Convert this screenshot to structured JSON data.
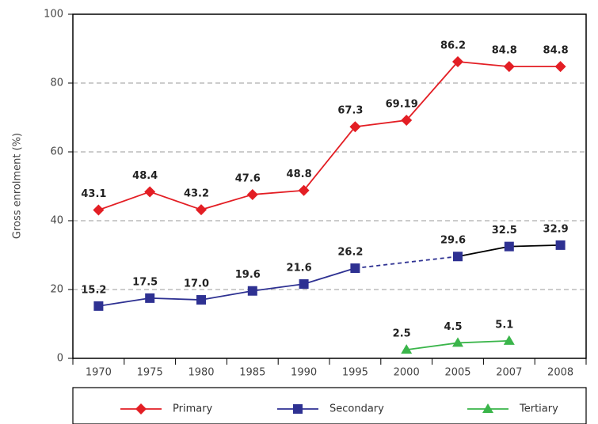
{
  "chart_data": {
    "type": "line",
    "y_label": "Gross enrolment (%)",
    "categories": [
      "1970",
      "1975",
      "1980",
      "1985",
      "1990",
      "1995",
      "2000",
      "2005",
      "2007",
      "2008"
    ],
    "ylim": [
      0,
      100
    ],
    "yticks": [
      0,
      20,
      40,
      60,
      80,
      100
    ],
    "grid": true,
    "series": [
      {
        "name": "Primary",
        "color": "#e31e24",
        "marker": "diamond",
        "values": [
          43.1,
          48.4,
          43.2,
          47.6,
          48.8,
          67.3,
          69.19,
          86.2,
          84.8,
          84.8
        ]
      },
      {
        "name": "Secondary",
        "color": "#2e3192",
        "marker": "square",
        "bridge_gaps": true,
        "line_colors": [
          "#2e3192",
          "#2e3192",
          "#2e3192",
          "#2e3192",
          "#2e3192",
          "#2e3192",
          "#000000",
          "#000000"
        ],
        "values": [
          15.2,
          17.5,
          17.0,
          19.6,
          21.6,
          26.2,
          null,
          29.6,
          32.5,
          32.9
        ],
        "value_labels": [
          "15.2",
          "17.5",
          "17.0",
          "19.6",
          "21.6",
          "26.2",
          null,
          "29.6",
          "32.5",
          "32.9"
        ]
      },
      {
        "name": "Tertiary",
        "color": "#3ab54a",
        "marker": "triangle",
        "values": [
          null,
          null,
          null,
          null,
          null,
          null,
          2.5,
          4.5,
          5.1,
          null
        ]
      }
    ]
  }
}
